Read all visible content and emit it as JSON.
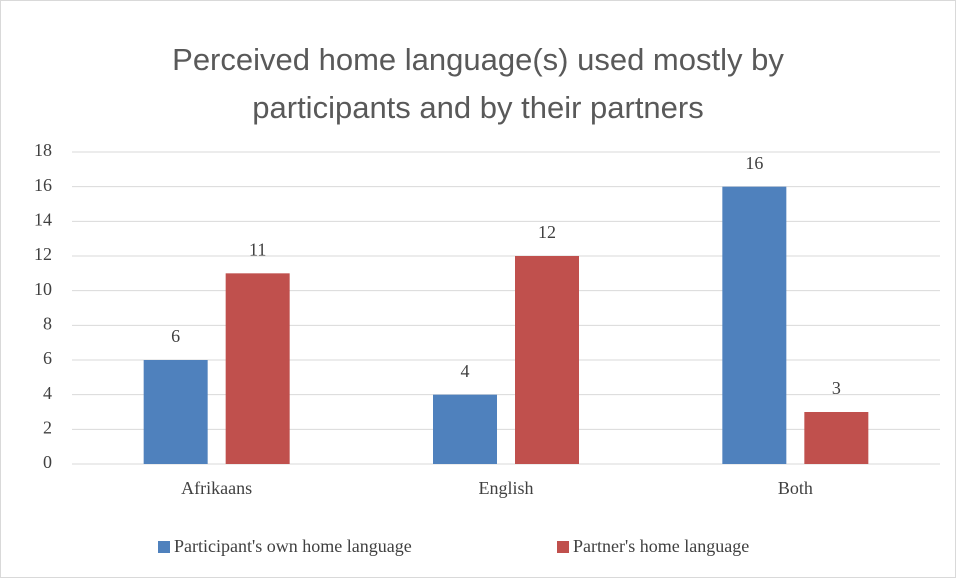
{
  "chart_data": {
    "type": "bar",
    "title": "Perceived home language(s) used mostly by participants and by their partners",
    "categories": [
      "Afrikaans",
      "English",
      "Both"
    ],
    "series": [
      {
        "name": "Participant's own home language",
        "color": "#4f81bd",
        "values": [
          6,
          4,
          16
        ]
      },
      {
        "name": "Partner's home language",
        "color": "#c0504d",
        "values": [
          11,
          12,
          3
        ]
      }
    ],
    "ylim": [
      0,
      18
    ],
    "yticks": [
      0,
      2,
      4,
      6,
      8,
      10,
      12,
      14,
      16,
      18
    ],
    "grid": true,
    "legend": "bottom"
  }
}
